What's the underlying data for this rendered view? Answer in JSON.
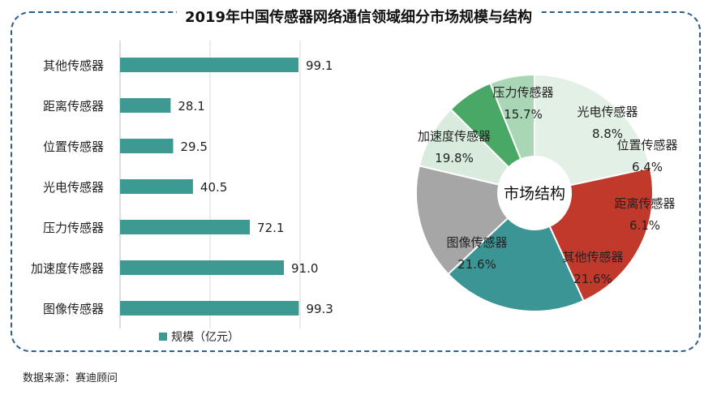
{
  "title": "2019年中国传感器网络通信领域细分市场规模与结构",
  "source": "数据来源：赛迪顾问",
  "colors": {
    "bar": "#3c9a92",
    "frame": "#2f5d8c"
  },
  "chart_data": [
    {
      "type": "bar",
      "orientation": "horizontal",
      "categories": [
        "其他传感器",
        "距离传感器",
        "位置传感器",
        "光电传感器",
        "压力传感器",
        "加速度传感器",
        "图像传感器"
      ],
      "series": [
        {
          "name": "规模（亿元）",
          "values": [
            99.1,
            28.1,
            29.5,
            40.5,
            72.1,
            91.0,
            99.3
          ]
        }
      ],
      "xlim": [
        0,
        120
      ],
      "grid": true,
      "legend": "bottom"
    },
    {
      "type": "pie",
      "donut": true,
      "center_label": "市场结构",
      "slices": [
        {
          "label": "其他传感器",
          "value": "21.6%",
          "color": "#e3f0e6"
        },
        {
          "label": "图像传感器",
          "value": "21.6%",
          "color": "#c0392b"
        },
        {
          "label": "加速度传感器",
          "value": "19.8%",
          "color": "#3b9594"
        },
        {
          "label": "压力传感器",
          "value": "15.7%",
          "color": "#a6a6a6"
        },
        {
          "label": "光电传感器",
          "value": "8.8%",
          "color": "#d8ebdc"
        },
        {
          "label": "位置传感器",
          "value": "6.4%",
          "color": "#4aa866"
        },
        {
          "label": "距离传感器",
          "value": "6.1%",
          "color": "#a9d6b5"
        }
      ]
    }
  ]
}
